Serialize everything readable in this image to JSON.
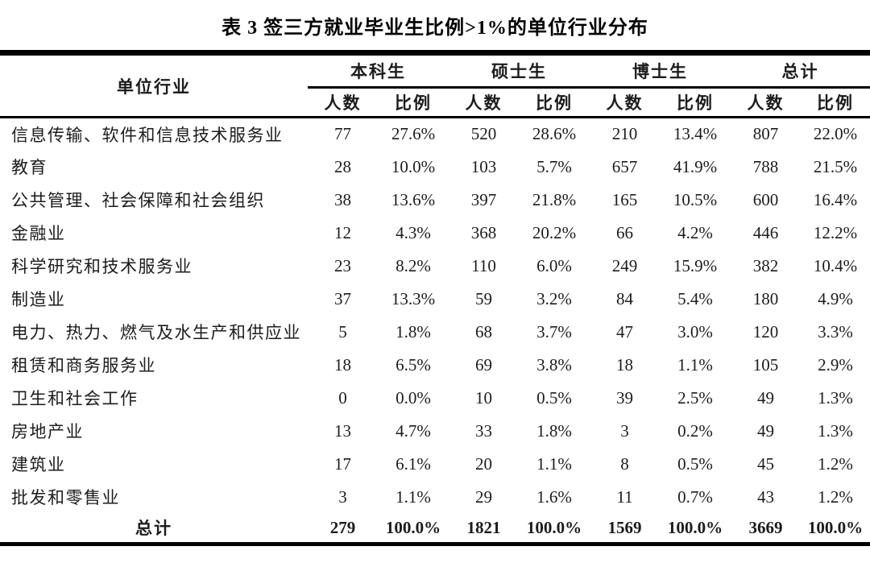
{
  "title": "表 3 签三方就业毕业生比例>1%的单位行业分布",
  "table": {
    "industry_header": "单位行业",
    "groups": [
      {
        "label": "本科生"
      },
      {
        "label": "硕士生"
      },
      {
        "label": "博士生"
      },
      {
        "label": "总计"
      }
    ],
    "subheaders": {
      "count": "人数",
      "ratio": "比例"
    },
    "rows": [
      {
        "industry": "信息传输、软件和信息技术服务业",
        "values": [
          "77",
          "27.6%",
          "520",
          "28.6%",
          "210",
          "13.4%",
          "807",
          "22.0%"
        ]
      },
      {
        "industry": "教育",
        "values": [
          "28",
          "10.0%",
          "103",
          "5.7%",
          "657",
          "41.9%",
          "788",
          "21.5%"
        ]
      },
      {
        "industry": "公共管理、社会保障和社会组织",
        "values": [
          "38",
          "13.6%",
          "397",
          "21.8%",
          "165",
          "10.5%",
          "600",
          "16.4%"
        ]
      },
      {
        "industry": "金融业",
        "values": [
          "12",
          "4.3%",
          "368",
          "20.2%",
          "66",
          "4.2%",
          "446",
          "12.2%"
        ]
      },
      {
        "industry": "科学研究和技术服务业",
        "values": [
          "23",
          "8.2%",
          "110",
          "6.0%",
          "249",
          "15.9%",
          "382",
          "10.4%"
        ]
      },
      {
        "industry": "制造业",
        "values": [
          "37",
          "13.3%",
          "59",
          "3.2%",
          "84",
          "5.4%",
          "180",
          "4.9%"
        ]
      },
      {
        "industry": "电力、热力、燃气及水生产和供应业",
        "values": [
          "5",
          "1.8%",
          "68",
          "3.7%",
          "47",
          "3.0%",
          "120",
          "3.3%"
        ]
      },
      {
        "industry": "租赁和商务服务业",
        "values": [
          "18",
          "6.5%",
          "69",
          "3.8%",
          "18",
          "1.1%",
          "105",
          "2.9%"
        ]
      },
      {
        "industry": "卫生和社会工作",
        "values": [
          "0",
          "0.0%",
          "10",
          "0.5%",
          "39",
          "2.5%",
          "49",
          "1.3%"
        ]
      },
      {
        "industry": "房地产业",
        "values": [
          "13",
          "4.7%",
          "33",
          "1.8%",
          "3",
          "0.2%",
          "49",
          "1.3%"
        ]
      },
      {
        "industry": "建筑业",
        "values": [
          "17",
          "6.1%",
          "20",
          "1.1%",
          "8",
          "0.5%",
          "45",
          "1.2%"
        ]
      },
      {
        "industry": "批发和零售业",
        "values": [
          "3",
          "1.1%",
          "29",
          "1.6%",
          "11",
          "0.7%",
          "43",
          "1.2%"
        ]
      }
    ],
    "total_row": {
      "label": "总计",
      "values": [
        "279",
        "100.0%",
        "1821",
        "100.0%",
        "1569",
        "100.0%",
        "3669",
        "100.0%"
      ]
    }
  },
  "colors": {
    "text": "#1c1c1c",
    "rule": "#000000",
    "background": "#ffffff"
  }
}
